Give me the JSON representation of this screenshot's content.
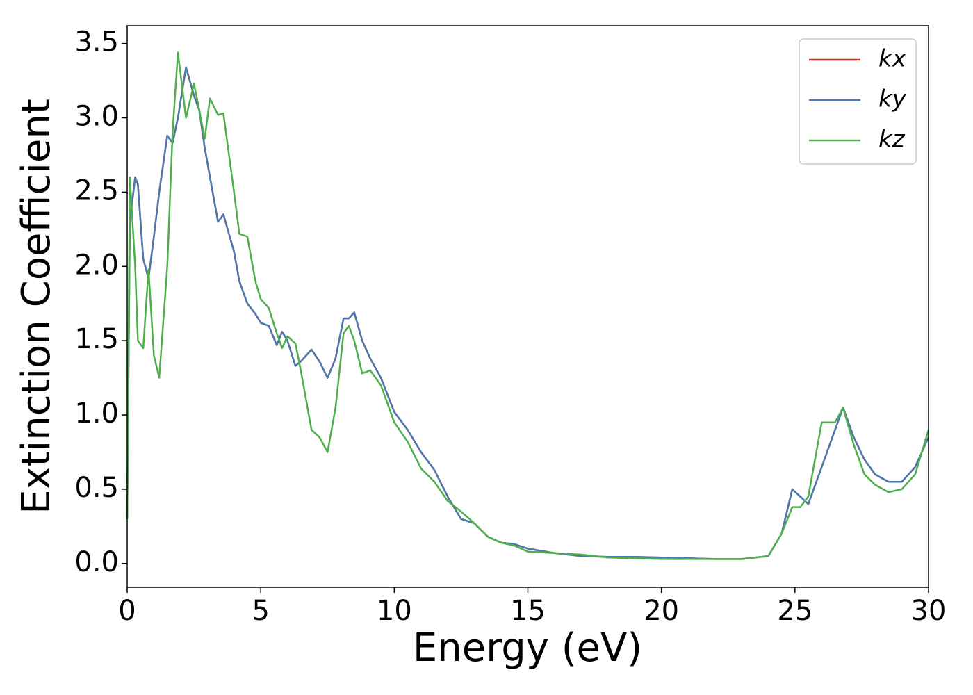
{
  "chart_data": {
    "type": "line",
    "x_label": "Energy (eV)",
    "y_label": "Extinction Coefficient",
    "x": [
      0,
      0.1,
      0.3,
      0.4,
      0.6,
      0.8,
      1.0,
      1.2,
      1.5,
      1.7,
      1.9,
      2.2,
      2.5,
      2.7,
      2.9,
      3.1,
      3.4,
      3.6,
      4.0,
      4.2,
      4.5,
      4.8,
      5.0,
      5.3,
      5.6,
      5.8,
      6.0,
      6.3,
      6.5,
      6.9,
      7.2,
      7.5,
      7.8,
      8.1,
      8.3,
      8.5,
      8.8,
      9.1,
      9.5,
      10,
      10.5,
      11,
      11.5,
      12,
      12.5,
      13,
      13.5,
      14,
      14.5,
      15,
      16,
      17,
      18,
      19,
      20,
      21,
      22,
      23,
      24,
      24.5,
      24.9,
      25.2,
      25.5,
      26,
      26.5,
      26.8,
      27.2,
      27.6,
      28,
      28.5,
      29,
      29.5,
      30
    ],
    "series": [
      {
        "name": "kx",
        "color": "#d62728",
        "values": [
          0.3,
          2.3,
          2.6,
          2.55,
          2.05,
          1.92,
          2.2,
          2.5,
          2.88,
          2.83,
          3.0,
          3.34,
          3.15,
          3.05,
          2.8,
          2.6,
          2.3,
          2.35,
          2.1,
          1.9,
          1.75,
          1.68,
          1.62,
          1.6,
          1.47,
          1.56,
          1.5,
          1.33,
          1.36,
          1.44,
          1.36,
          1.25,
          1.38,
          1.65,
          1.65,
          1.69,
          1.5,
          1.38,
          1.25,
          1.02,
          0.9,
          0.75,
          0.63,
          0.45,
          0.3,
          0.27,
          0.18,
          0.14,
          0.13,
          0.1,
          0.07,
          0.05,
          0.045,
          0.045,
          0.04,
          0.035,
          0.03,
          0.03,
          0.05,
          0.2,
          0.5,
          0.45,
          0.4,
          0.65,
          0.9,
          1.05,
          0.85,
          0.7,
          0.6,
          0.55,
          0.55,
          0.65,
          0.85
        ]
      },
      {
        "name": "ky",
        "color": "#4a79b0",
        "values": [
          0.3,
          2.3,
          2.6,
          2.55,
          2.05,
          1.92,
          2.2,
          2.5,
          2.88,
          2.83,
          3.0,
          3.34,
          3.15,
          3.05,
          2.8,
          2.6,
          2.3,
          2.35,
          2.1,
          1.9,
          1.75,
          1.68,
          1.62,
          1.6,
          1.47,
          1.56,
          1.5,
          1.33,
          1.36,
          1.44,
          1.36,
          1.25,
          1.38,
          1.65,
          1.65,
          1.69,
          1.5,
          1.38,
          1.25,
          1.02,
          0.9,
          0.75,
          0.63,
          0.45,
          0.3,
          0.27,
          0.18,
          0.14,
          0.13,
          0.1,
          0.07,
          0.05,
          0.045,
          0.045,
          0.04,
          0.035,
          0.03,
          0.03,
          0.05,
          0.2,
          0.5,
          0.45,
          0.4,
          0.65,
          0.9,
          1.05,
          0.85,
          0.7,
          0.6,
          0.55,
          0.55,
          0.65,
          0.85
        ]
      },
      {
        "name": "kz",
        "color": "#4daf4a",
        "values": [
          0.3,
          2.6,
          2.0,
          1.5,
          1.45,
          1.98,
          1.4,
          1.25,
          2.0,
          2.9,
          3.44,
          3.0,
          3.23,
          3.05,
          2.86,
          3.13,
          3.02,
          3.03,
          2.5,
          2.22,
          2.2,
          1.9,
          1.78,
          1.72,
          1.55,
          1.45,
          1.53,
          1.48,
          1.3,
          0.9,
          0.85,
          0.75,
          1.05,
          1.55,
          1.6,
          1.5,
          1.28,
          1.3,
          1.2,
          0.95,
          0.82,
          0.64,
          0.55,
          0.42,
          0.35,
          0.27,
          0.18,
          0.14,
          0.12,
          0.08,
          0.07,
          0.06,
          0.04,
          0.035,
          0.03,
          0.03,
          0.03,
          0.03,
          0.05,
          0.2,
          0.38,
          0.38,
          0.45,
          0.95,
          0.95,
          1.05,
          0.8,
          0.6,
          0.53,
          0.48,
          0.5,
          0.6,
          0.9
        ]
      }
    ],
    "xlim": [
      0,
      30
    ],
    "xticks": [
      0,
      5,
      10,
      15,
      20,
      25,
      30
    ],
    "ylim": [
      -0.16,
      3.62
    ],
    "yticks": [
      {
        "value": 0,
        "label": "0.0"
      },
      0.5,
      {
        "value": 1,
        "label": "1.0"
      },
      1.5,
      {
        "value": 2,
        "label": "2.0"
      },
      2.5,
      {
        "value": 3,
        "label": "3.0"
      },
      3.5
    ],
    "legend": "upper right"
  }
}
